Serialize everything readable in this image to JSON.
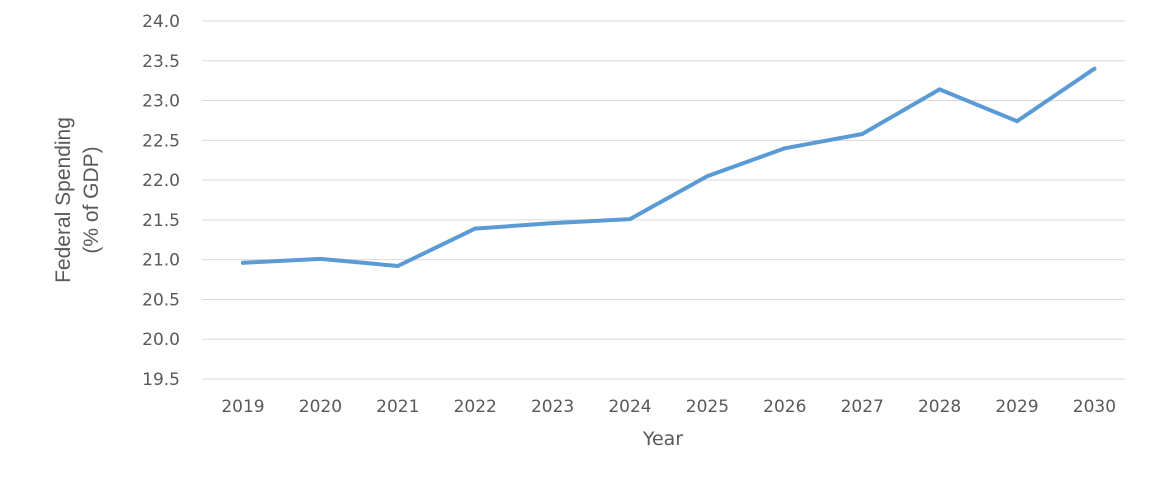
{
  "chart_data": {
    "type": "line",
    "title": "",
    "xlabel": "Year",
    "ylabel": [
      "Federal Spending",
      "(% of GDP)"
    ],
    "categories": [
      "2019",
      "2020",
      "2021",
      "2022",
      "2023",
      "2024",
      "2025",
      "2026",
      "2027",
      "2028",
      "2029",
      "2030"
    ],
    "series": [
      {
        "values": [
          20.96,
          21.01,
          20.92,
          21.39,
          21.46,
          21.51,
          22.05,
          22.4,
          22.58,
          23.14,
          22.74,
          23.4
        ],
        "color": "#5b9bd5"
      }
    ],
    "ylim": [
      19.5,
      24.0
    ],
    "yticks": [
      "19.5",
      "20.0",
      "20.5",
      "21.0",
      "21.5",
      "22.0",
      "22.5",
      "23.0",
      "23.5",
      "24.0"
    ],
    "grid": true,
    "legend": "none"
  }
}
